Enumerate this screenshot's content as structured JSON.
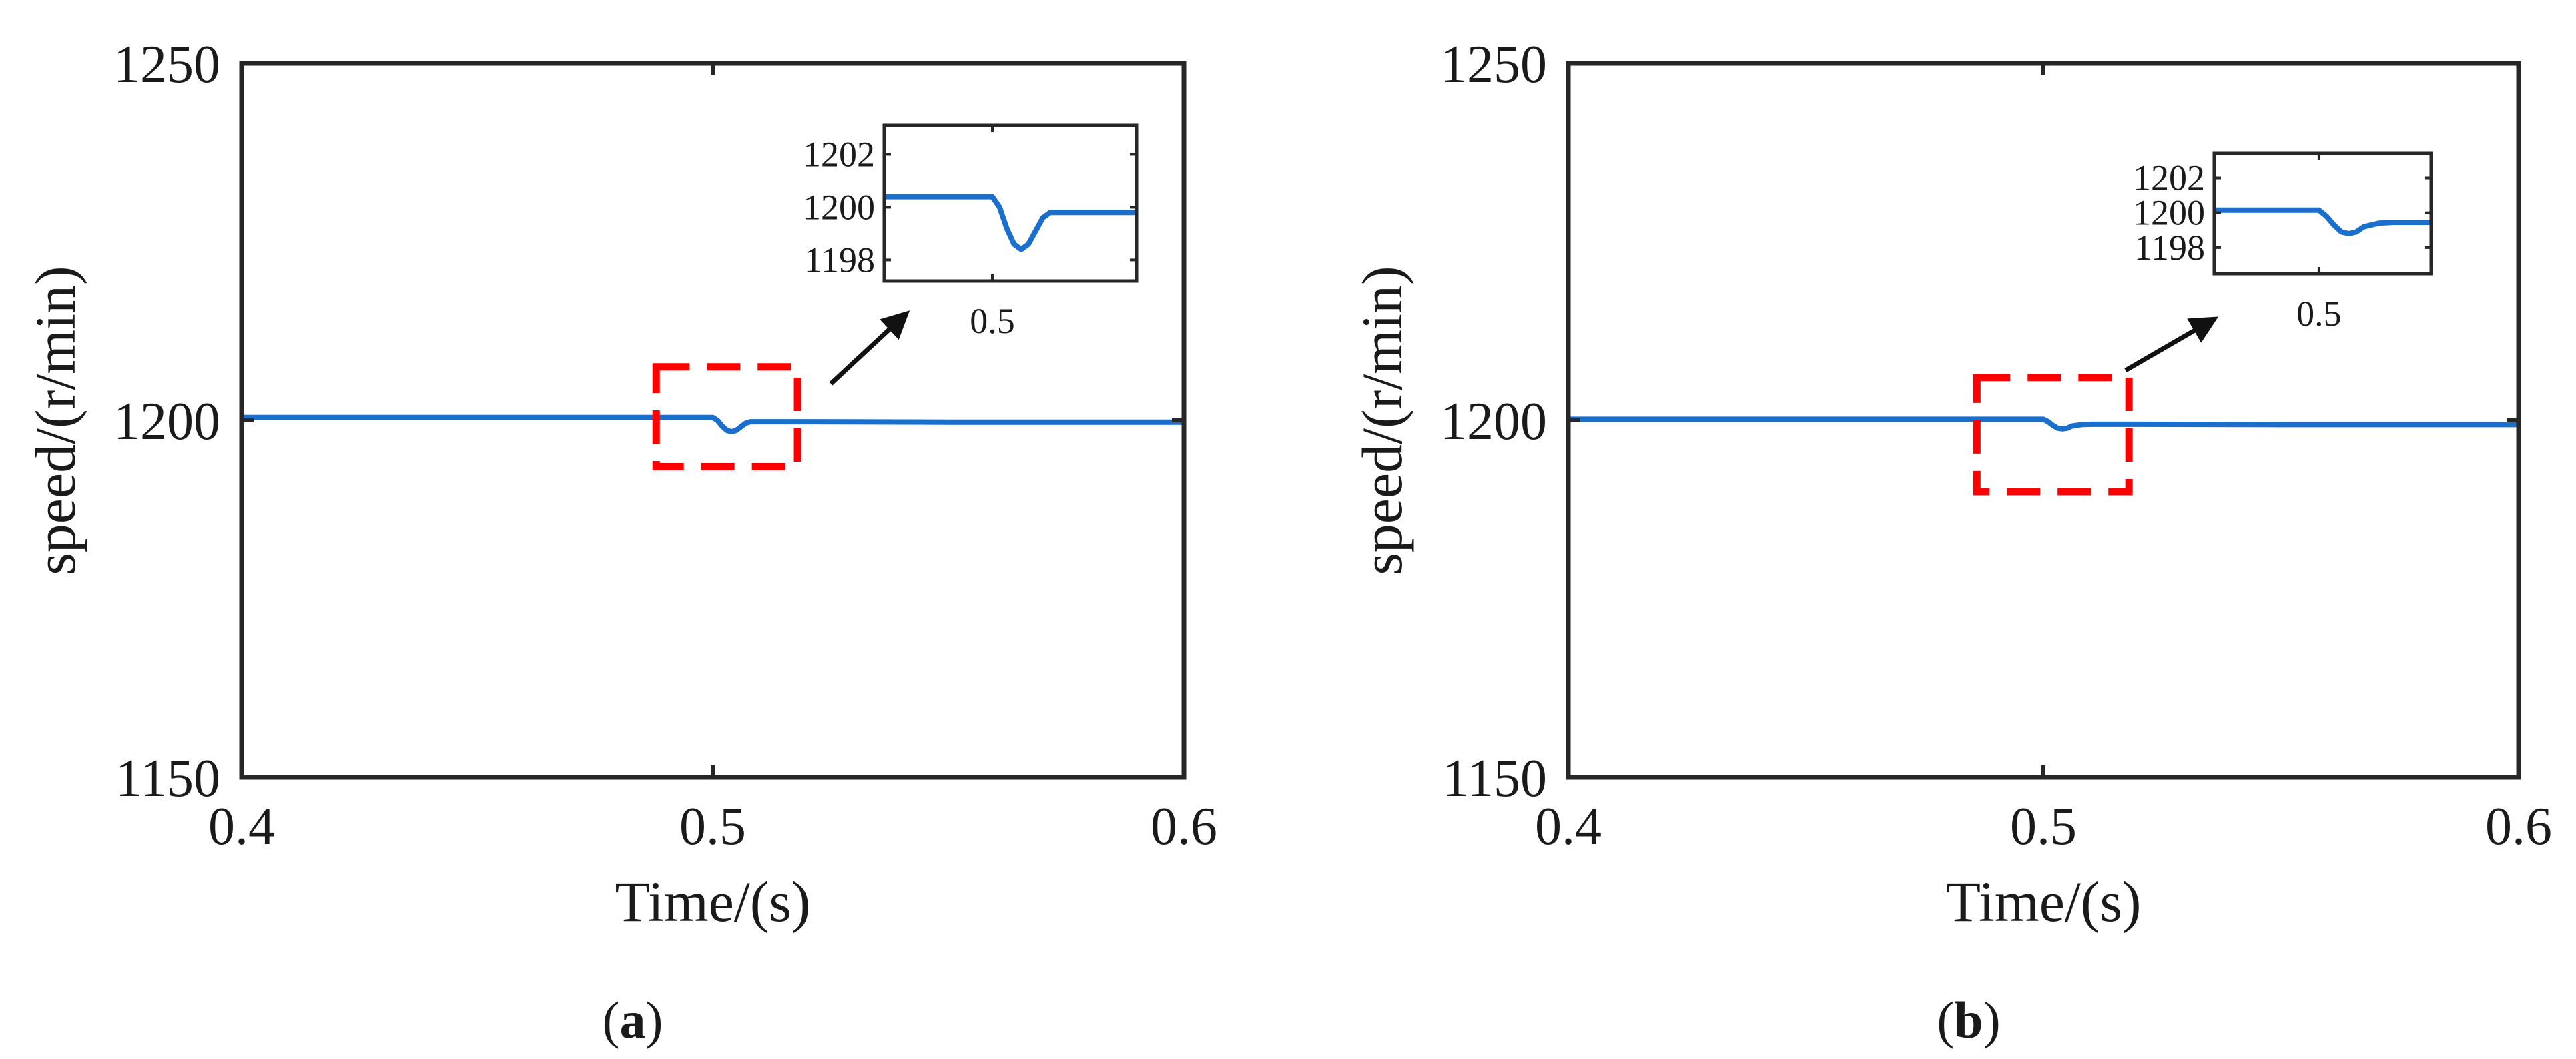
{
  "chart_data": [
    {
      "type": "line",
      "panel_caption": "(a)",
      "caption_letter": "a",
      "xlabel": "Time/(s)",
      "ylabel": "speed/(r/min)",
      "xlim": [
        0.4,
        0.6
      ],
      "ylim": [
        1150,
        1250
      ],
      "xticks": [
        "0.4",
        "0.5",
        "0.6"
      ],
      "yticks": [
        "1150",
        "1200",
        "1250"
      ],
      "grid": false,
      "series": [
        {
          "color": "#1a6fcc",
          "x": [
            0.4,
            0.45,
            0.5,
            0.501,
            0.502,
            0.503,
            0.504,
            0.505,
            0.506,
            0.507,
            0.508,
            0.51,
            0.52,
            0.55,
            0.6
          ],
          "y": [
            1200.4,
            1200.4,
            1200.4,
            1200.0,
            1199.2,
            1198.6,
            1198.4,
            1198.6,
            1199.1,
            1199.6,
            1199.8,
            1199.8,
            1199.8,
            1199.75,
            1199.75
          ]
        }
      ],
      "highlight_box": {
        "x": [
          0.488,
          0.518
        ],
        "y": [
          1193.5,
          1207.5
        ],
        "color": "#ff0000"
      },
      "inset": {
        "xlim": [
          0.485,
          0.52
        ],
        "ylim": [
          1197.2,
          1203.1
        ],
        "xticks": [
          "0.5"
        ],
        "yticks": [
          "1198",
          "1200",
          "1202"
        ]
      }
    },
    {
      "type": "line",
      "panel_caption": "(b)",
      "caption_letter": "b",
      "xlabel": "Time/(s)",
      "ylabel": "speed/(r/min)",
      "xlim": [
        0.4,
        0.6
      ],
      "ylim": [
        1150,
        1250
      ],
      "xticks": [
        "0.4",
        "0.5",
        "0.6"
      ],
      "yticks": [
        "1150",
        "1200",
        "1250"
      ],
      "grid": false,
      "series": [
        {
          "color": "#1a6fcc",
          "x": [
            0.4,
            0.45,
            0.5,
            0.501,
            0.502,
            0.503,
            0.504,
            0.505,
            0.506,
            0.508,
            0.51,
            0.52,
            0.55,
            0.6
          ],
          "y": [
            1200.15,
            1200.15,
            1200.15,
            1199.8,
            1199.3,
            1198.9,
            1198.8,
            1198.9,
            1199.2,
            1199.4,
            1199.45,
            1199.45,
            1199.4,
            1199.4
          ]
        }
      ],
      "highlight_box": {
        "x": [
          0.486,
          0.518
        ],
        "y": [
          1190,
          1206
        ],
        "color": "#ff0000"
      },
      "inset": {
        "xlim": [
          0.486,
          0.515
        ],
        "ylim": [
          1196.5,
          1203.4
        ],
        "xticks": [
          "0.5"
        ],
        "yticks": [
          "1198",
          "1200",
          "1202"
        ]
      }
    }
  ]
}
